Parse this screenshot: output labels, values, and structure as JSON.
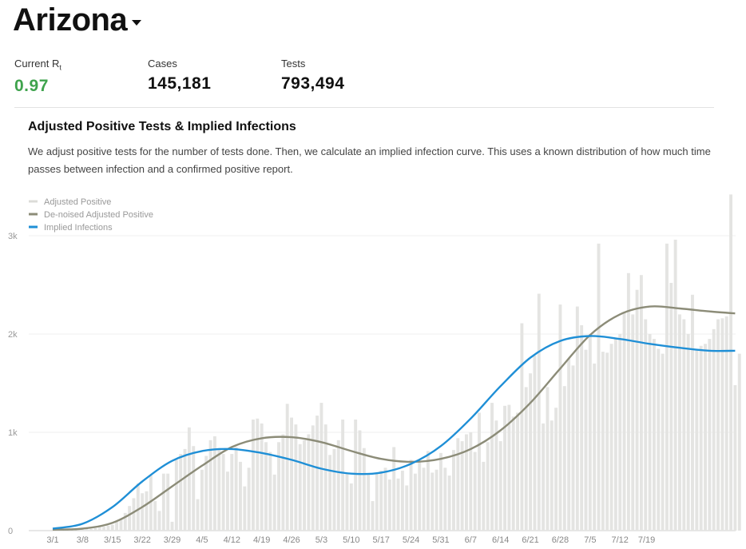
{
  "header": {
    "state_name": "Arizona"
  },
  "stats": {
    "rt": {
      "label_main": "Current R",
      "label_sub": "t",
      "value": "0.97",
      "color": "#3fa34d"
    },
    "cases": {
      "label": "Cases",
      "value": "145,181"
    },
    "tests": {
      "label": "Tests",
      "value": "793,494"
    }
  },
  "chart_data": {
    "type": "bar",
    "title": "Adjusted Positive Tests & Implied Infections",
    "subtitle": "We adjust positive tests for the number of tests done. Then, we calculate an implied infection curve. This uses a known distribution of how much time passes between infection and a confirmed positive report.",
    "xlabel": "",
    "ylabel": "",
    "ylim": [
      0,
      3300
    ],
    "grid": true,
    "legend_position": "top-left",
    "x_tick_labels": [
      "3/1",
      "3/8",
      "3/15",
      "3/22",
      "3/29",
      "4/5",
      "4/12",
      "4/19",
      "4/26",
      "5/3",
      "5/10",
      "5/17",
      "5/24",
      "5/31",
      "6/7",
      "6/14",
      "6/21",
      "6/28",
      "7/5",
      "7/12",
      "7/19"
    ],
    "y_tick_labels": [
      "0",
      "1k",
      "2k",
      "3k"
    ],
    "y_tick_values": [
      0,
      1000,
      2000,
      3000
    ],
    "start_date": "3/1",
    "series": [
      {
        "name": "Adjusted Positive",
        "kind": "bar",
        "color": "#e4e4e2",
        "values": [
          10,
          10,
          10,
          10,
          10,
          10,
          10,
          15,
          15,
          20,
          25,
          30,
          40,
          50,
          60,
          90,
          120,
          180,
          250,
          330,
          480,
          380,
          400,
          560,
          300,
          200,
          580,
          580,
          90,
          720,
          780,
          830,
          1050,
          860,
          320,
          620,
          760,
          920,
          960,
          840,
          780,
          600,
          780,
          850,
          700,
          450,
          640,
          1130,
          1140,
          1090,
          900,
          800,
          570,
          900,
          980,
          1290,
          1150,
          1080,
          880,
          920,
          980,
          1070,
          1170,
          1300,
          1080,
          770,
          830,
          920,
          1130,
          590,
          480,
          1130,
          1020,
          840,
          570,
          300,
          580,
          610,
          640,
          520,
          850,
          530,
          610,
          460,
          720,
          580,
          700,
          640,
          810,
          590,
          620,
          790,
          640,
          560,
          820,
          940,
          910,
          980,
          1000,
          800,
          1200,
          700,
          900,
          1300,
          1120,
          910,
          1270,
          1280,
          1160,
          1200,
          2110,
          1460,
          1600,
          1780,
          2410,
          1090,
          1460,
          1120,
          1250,
          2300,
          1470,
          1750,
          1680,
          2280,
          2090,
          1840,
          2000,
          1700,
          2920,
          1820,
          1810,
          1900,
          1950,
          2000,
          2220,
          2620,
          2200,
          2450,
          2600,
          2150,
          2000,
          1950,
          1850,
          1800,
          2920,
          2520,
          2960,
          2200,
          2150,
          2000,
          2400,
          1850,
          1880,
          1900,
          1950,
          2050,
          2150,
          2160,
          2180,
          3420,
          1480,
          1800
        ]
      },
      {
        "name": "De-noised Adjusted Positive",
        "kind": "line",
        "color": "#8c8c78",
        "points": [
          [
            0,
            10
          ],
          [
            7,
            20
          ],
          [
            14,
            80
          ],
          [
            21,
            240
          ],
          [
            28,
            450
          ],
          [
            35,
            660
          ],
          [
            42,
            850
          ],
          [
            49,
            940
          ],
          [
            56,
            950
          ],
          [
            63,
            900
          ],
          [
            70,
            810
          ],
          [
            77,
            730
          ],
          [
            84,
            700
          ],
          [
            91,
            730
          ],
          [
            98,
            830
          ],
          [
            105,
            1020
          ],
          [
            112,
            1300
          ],
          [
            119,
            1650
          ],
          [
            126,
            1990
          ],
          [
            133,
            2200
          ],
          [
            140,
            2280
          ],
          [
            147,
            2260
          ],
          [
            154,
            2230
          ],
          [
            160,
            2210
          ]
        ]
      },
      {
        "name": "Implied Infections",
        "kind": "line",
        "color": "#1f8fd6",
        "points": [
          [
            0,
            20
          ],
          [
            7,
            70
          ],
          [
            14,
            240
          ],
          [
            21,
            500
          ],
          [
            28,
            710
          ],
          [
            35,
            810
          ],
          [
            42,
            830
          ],
          [
            49,
            790
          ],
          [
            56,
            720
          ],
          [
            63,
            630
          ],
          [
            70,
            580
          ],
          [
            77,
            590
          ],
          [
            84,
            680
          ],
          [
            91,
            860
          ],
          [
            98,
            1140
          ],
          [
            105,
            1470
          ],
          [
            112,
            1760
          ],
          [
            119,
            1930
          ],
          [
            126,
            1980
          ],
          [
            133,
            1950
          ],
          [
            140,
            1900
          ],
          [
            147,
            1860
          ],
          [
            154,
            1830
          ],
          [
            160,
            1830
          ]
        ]
      }
    ]
  }
}
